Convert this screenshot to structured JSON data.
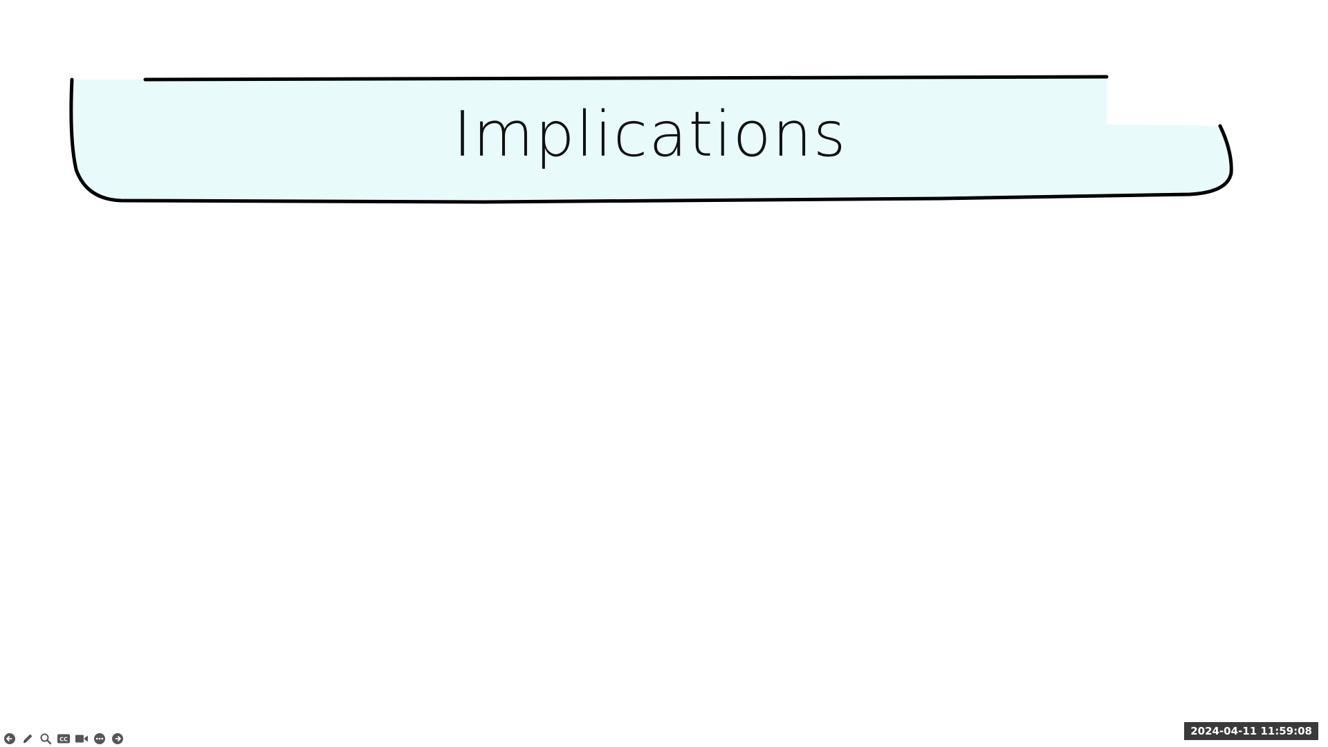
{
  "slide": {
    "title": "Implications",
    "title_banner_fill": "#e8fafa",
    "outline_color": "#000000"
  },
  "toolbar": {
    "buttons": [
      {
        "icon": "previous-slide-icon",
        "label": "Previous"
      },
      {
        "icon": "pen-icon",
        "label": "Pen"
      },
      {
        "icon": "zoom-icon",
        "label": "Zoom"
      },
      {
        "icon": "closed-captions-icon",
        "label": "Captions"
      },
      {
        "icon": "camera-icon",
        "label": "Camera"
      },
      {
        "icon": "more-options-icon",
        "label": "More"
      },
      {
        "icon": "next-slide-icon",
        "label": "Next"
      }
    ]
  },
  "overlay": {
    "timestamp": "2024-04-11 11:59:08"
  }
}
